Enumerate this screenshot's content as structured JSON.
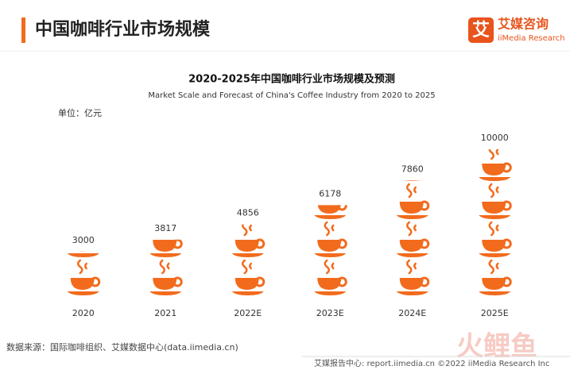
{
  "header": {
    "title": "中国咖啡行业市场规模",
    "logo": {
      "icon": "艾",
      "name": "艾媒咨询",
      "english": "iiMedia Research"
    }
  },
  "chart_data": {
    "type": "pictorial-bar",
    "title": "2020-2025年中国咖啡行业市场规模及预测",
    "subtitle": "Market Scale and Forecast of China's Coffee Industry from 2020 to 2025",
    "unit": "单位：亿元",
    "categories": [
      "2020",
      "2021",
      "2022E",
      "2023E",
      "2024E",
      "2025E"
    ],
    "values": [
      3000,
      3817,
      4856,
      6178,
      7860,
      10000
    ],
    "color": "#f26b1d"
  },
  "footer": {
    "source": "数据来源：国际咖啡组织、艾媒数据中心(data.iimedia.cn)",
    "report": "艾媒报告中心: report.iimedia.cn  ©2022  iiMedia Research  Inc",
    "watermark": "火鲤鱼"
  }
}
